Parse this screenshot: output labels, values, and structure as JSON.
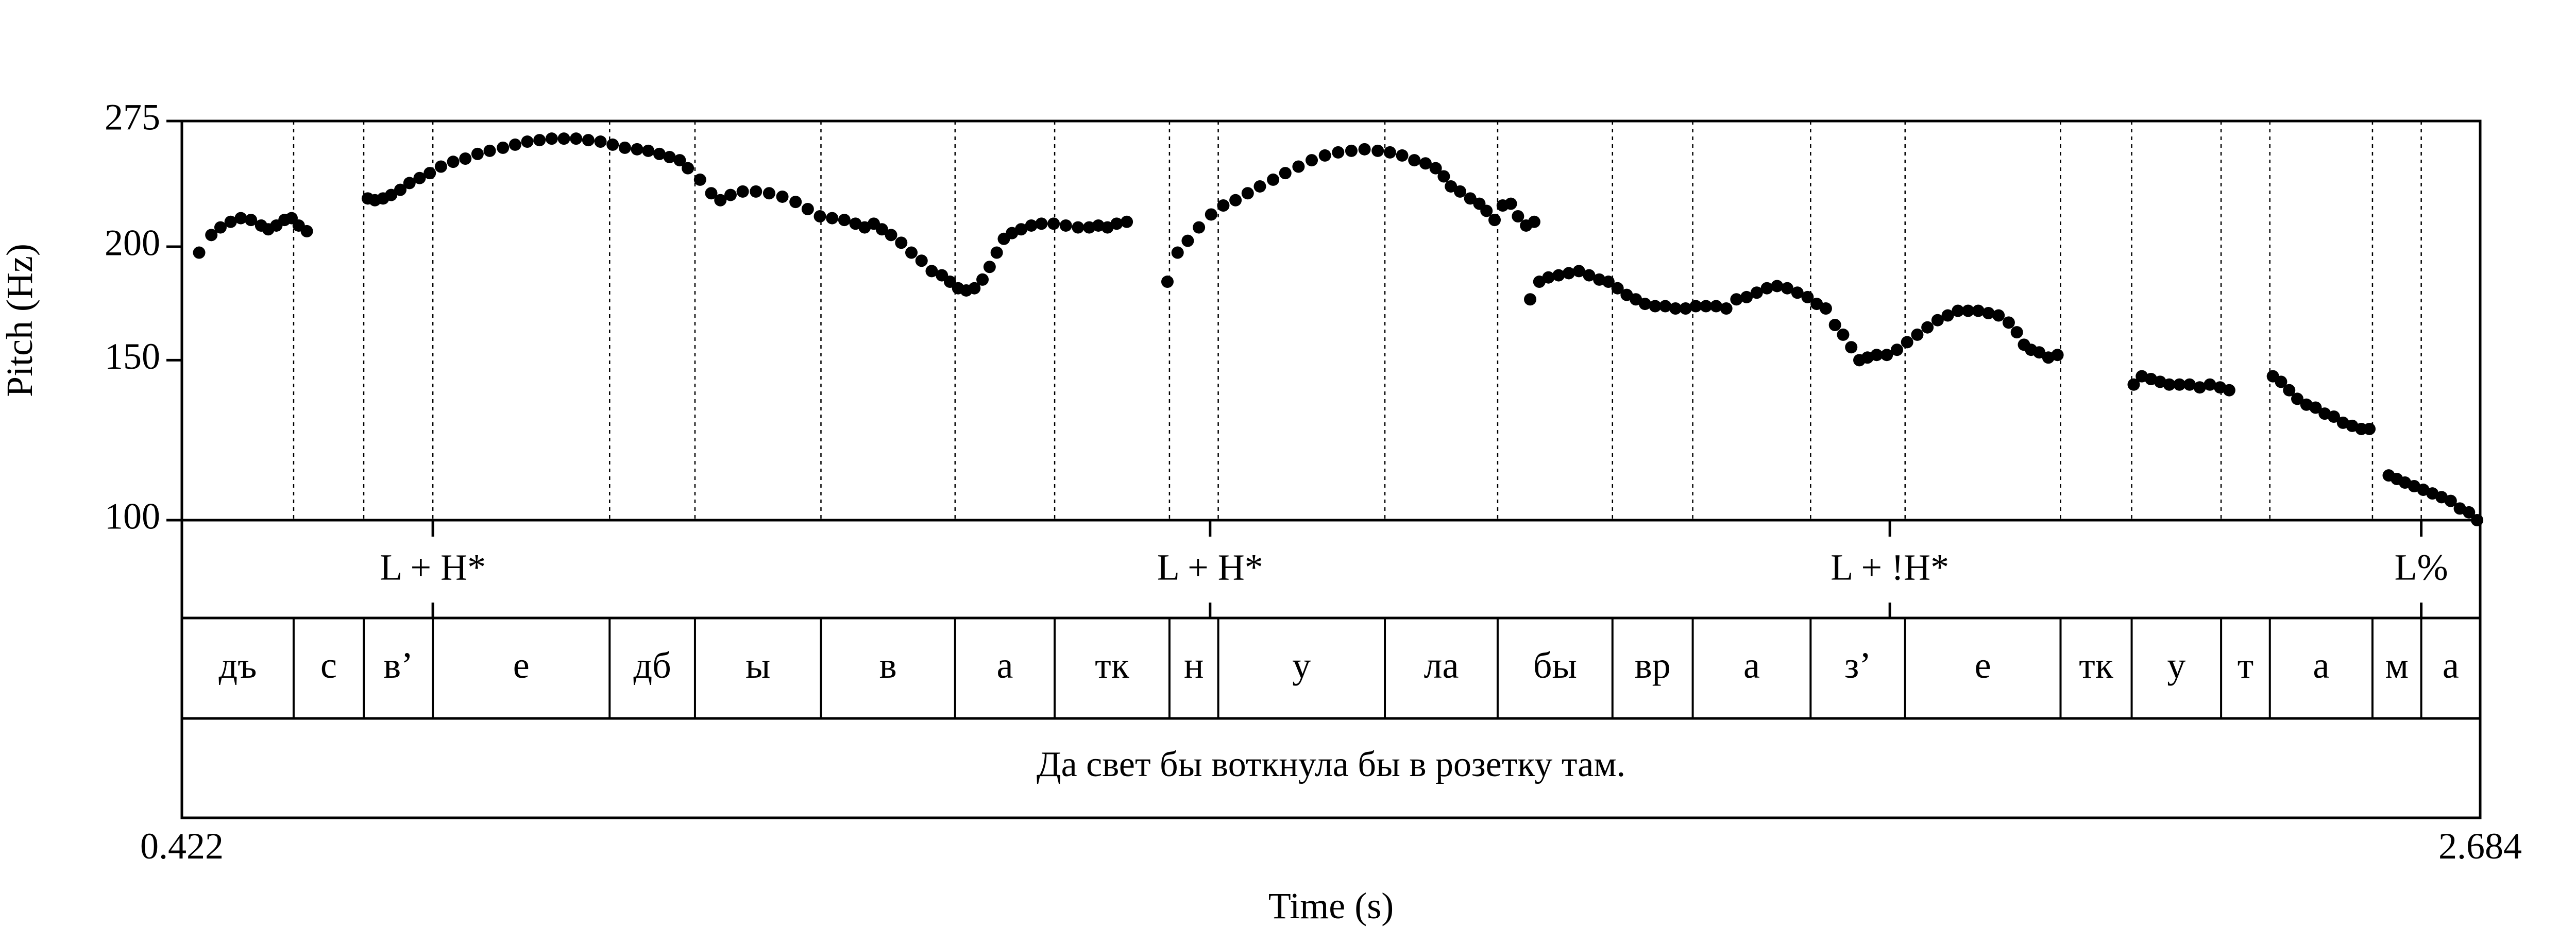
{
  "chart_data": {
    "type": "scatter",
    "xlabel": "Time (s)",
    "ylabel": "Pitch (Hz)",
    "xlim": [
      0.422,
      2.684
    ],
    "ylim": [
      100,
      275
    ],
    "y_scale": "log",
    "x_tick_labels": [
      "0.422",
      "2.684"
    ],
    "y_ticks": [
      100,
      150,
      200,
      275
    ],
    "y_tick_labels": [
      "100",
      "150",
      "200",
      "275"
    ],
    "grid": false,
    "marker_color": "#000000",
    "tones": [
      {
        "label": "L + H*",
        "time": 0.669
      },
      {
        "label": "L + H*",
        "time": 1.434
      },
      {
        "label": "L + !H*",
        "time": 2.103
      },
      {
        "label": "L%",
        "time": 2.626
      }
    ],
    "segments": [
      {
        "label": "дъ",
        "start": 0.422,
        "end": 0.532
      },
      {
        "label": "с",
        "start": 0.532,
        "end": 0.601
      },
      {
        "label": "в’",
        "start": 0.601,
        "end": 0.669
      },
      {
        "label": "е",
        "start": 0.669,
        "end": 0.843
      },
      {
        "label": "дб",
        "start": 0.843,
        "end": 0.927
      },
      {
        "label": "ы",
        "start": 0.927,
        "end": 1.051
      },
      {
        "label": "в",
        "start": 1.051,
        "end": 1.183
      },
      {
        "label": "а",
        "start": 1.183,
        "end": 1.281
      },
      {
        "label": "тк",
        "start": 1.281,
        "end": 1.394
      },
      {
        "label": "н",
        "start": 1.394,
        "end": 1.442
      },
      {
        "label": "у",
        "start": 1.442,
        "end": 1.606
      },
      {
        "label": "ла",
        "start": 1.606,
        "end": 1.717
      },
      {
        "label": "бы",
        "start": 1.717,
        "end": 1.83
      },
      {
        "label": "вр",
        "start": 1.83,
        "end": 1.909
      },
      {
        "label": "а",
        "start": 1.909,
        "end": 2.025
      },
      {
        "label": "з’",
        "start": 2.025,
        "end": 2.118
      },
      {
        "label": "е",
        "start": 2.118,
        "end": 2.271
      },
      {
        "label": "тк",
        "start": 2.271,
        "end": 2.341
      },
      {
        "label": "у",
        "start": 2.341,
        "end": 2.429
      },
      {
        "label": "т",
        "start": 2.429,
        "end": 2.477
      },
      {
        "label": "а",
        "start": 2.477,
        "end": 2.578
      },
      {
        "label": "м",
        "start": 2.578,
        "end": 2.626
      },
      {
        "label": "а",
        "start": 2.626,
        "end": 2.684
      }
    ],
    "sentence": "Да свет бы воткнула бы в розетку там.",
    "pitch_track": [
      [
        [
          0.439,
          197
        ],
        [
          0.451,
          206
        ],
        [
          0.46,
          210
        ],
        [
          0.47,
          213
        ],
        [
          0.48,
          215
        ],
        [
          0.49,
          214
        ],
        [
          0.5,
          211
        ],
        [
          0.507,
          209
        ],
        [
          0.515,
          211
        ],
        [
          0.523,
          214
        ],
        [
          0.53,
          215
        ],
        [
          0.537,
          211
        ],
        [
          0.545,
          208
        ]
      ],
      [
        [
          0.605,
          226
        ],
        [
          0.612,
          225
        ],
        [
          0.62,
          226
        ],
        [
          0.628,
          228
        ],
        [
          0.637,
          231
        ],
        [
          0.646,
          235
        ],
        [
          0.656,
          238
        ],
        [
          0.666,
          241
        ],
        [
          0.677,
          245
        ],
        [
          0.689,
          248
        ],
        [
          0.701,
          250
        ],
        [
          0.713,
          253
        ],
        [
          0.725,
          255
        ],
        [
          0.738,
          257
        ],
        [
          0.75,
          259
        ],
        [
          0.762,
          261
        ],
        [
          0.774,
          262
        ],
        [
          0.786,
          263
        ],
        [
          0.798,
          263
        ],
        [
          0.81,
          263
        ],
        [
          0.822,
          262
        ],
        [
          0.834,
          261
        ],
        [
          0.846,
          259
        ],
        [
          0.858,
          257
        ],
        [
          0.87,
          256
        ],
        [
          0.881,
          255
        ],
        [
          0.892,
          253
        ],
        [
          0.902,
          251
        ],
        [
          0.912,
          249
        ],
        [
          0.92,
          244
        ]
      ],
      [
        [
          0.932,
          237
        ],
        [
          0.943,
          229
        ],
        [
          0.952,
          225
        ],
        [
          0.962,
          228
        ],
        [
          0.974,
          230
        ],
        [
          0.987,
          230
        ],
        [
          1.0,
          229
        ],
        [
          1.013,
          227
        ],
        [
          1.026,
          224
        ],
        [
          1.038,
          220
        ],
        [
          1.05,
          216
        ],
        [
          1.062,
          215
        ],
        [
          1.074,
          214
        ],
        [
          1.085,
          212
        ],
        [
          1.094,
          210
        ],
        [
          1.103,
          212
        ],
        [
          1.111,
          209
        ],
        [
          1.12,
          206
        ],
        [
          1.13,
          202
        ],
        [
          1.14,
          197
        ],
        [
          1.15,
          193
        ],
        [
          1.16,
          188
        ],
        [
          1.17,
          186
        ],
        [
          1.178,
          183
        ],
        [
          1.186,
          180
        ],
        [
          1.194,
          179
        ],
        [
          1.202,
          180
        ],
        [
          1.21,
          184
        ],
        [
          1.217,
          190
        ],
        [
          1.224,
          197
        ],
        [
          1.231,
          204
        ],
        [
          1.239,
          207
        ],
        [
          1.248,
          209
        ],
        [
          1.258,
          211
        ],
        [
          1.268,
          212
        ],
        [
          1.28,
          212
        ],
        [
          1.292,
          211
        ],
        [
          1.304,
          210
        ],
        [
          1.315,
          210
        ],
        [
          1.324,
          211
        ],
        [
          1.333,
          210
        ],
        [
          1.342,
          212
        ],
        [
          1.352,
          213
        ]
      ],
      [
        [
          1.392,
          183
        ],
        [
          1.402,
          197
        ],
        [
          1.412,
          203
        ],
        [
          1.423,
          210
        ],
        [
          1.435,
          217
        ],
        [
          1.447,
          222
        ],
        [
          1.459,
          225
        ],
        [
          1.471,
          229
        ],
        [
          1.483,
          233
        ],
        [
          1.496,
          237
        ],
        [
          1.508,
          241
        ],
        [
          1.521,
          245
        ],
        [
          1.534,
          249
        ],
        [
          1.547,
          252
        ],
        [
          1.56,
          254
        ],
        [
          1.573,
          255
        ],
        [
          1.586,
          256
        ],
        [
          1.599,
          255
        ],
        [
          1.611,
          254
        ],
        [
          1.623,
          252
        ],
        [
          1.635,
          249
        ],
        [
          1.646,
          247
        ],
        [
          1.656,
          244
        ],
        [
          1.664,
          239
        ],
        [
          1.671,
          233
        ],
        [
          1.68,
          230
        ],
        [
          1.69,
          226
        ],
        [
          1.699,
          223
        ],
        [
          1.706,
          219
        ],
        [
          1.714,
          214
        ],
        [
          1.722,
          222
        ],
        [
          1.73,
          223
        ],
        [
          1.737,
          216
        ],
        [
          1.745,
          211
        ],
        [
          1.753,
          213
        ]
      ],
      [
        [
          1.749,
          175
        ],
        [
          1.758,
          183
        ],
        [
          1.767,
          185
        ],
        [
          1.777,
          186
        ],
        [
          1.787,
          187
        ],
        [
          1.797,
          188
        ],
        [
          1.807,
          186
        ],
        [
          1.817,
          184
        ],
        [
          1.826,
          183
        ],
        [
          1.835,
          180
        ],
        [
          1.844,
          177
        ],
        [
          1.853,
          175
        ],
        [
          1.862,
          173
        ],
        [
          1.872,
          172
        ],
        [
          1.882,
          172
        ],
        [
          1.892,
          171
        ],
        [
          1.902,
          171
        ],
        [
          1.912,
          172
        ],
        [
          1.922,
          172
        ],
        [
          1.932,
          172
        ],
        [
          1.942,
          171
        ],
        [
          1.952,
          175
        ],
        [
          1.962,
          176
        ],
        [
          1.972,
          178
        ],
        [
          1.982,
          180
        ],
        [
          1.992,
          181
        ],
        [
          2.002,
          180
        ],
        [
          2.012,
          178
        ],
        [
          2.022,
          176
        ],
        [
          2.031,
          173
        ],
        [
          2.04,
          171
        ],
        [
          2.049,
          164
        ],
        [
          2.057,
          160
        ],
        [
          2.065,
          155
        ],
        [
          2.073,
          150
        ],
        [
          2.081,
          151
        ],
        [
          2.09,
          152
        ],
        [
          2.1,
          152
        ],
        [
          2.11,
          154
        ],
        [
          2.12,
          157
        ],
        [
          2.13,
          160
        ],
        [
          2.14,
          163
        ],
        [
          2.15,
          166
        ],
        [
          2.16,
          168
        ],
        [
          2.17,
          170
        ],
        [
          2.18,
          170
        ],
        [
          2.19,
          170
        ],
        [
          2.2,
          169
        ],
        [
          2.21,
          168
        ],
        [
          2.22,
          165
        ],
        [
          2.228,
          161
        ],
        [
          2.235,
          156
        ],
        [
          2.242,
          154
        ],
        [
          2.25,
          153
        ],
        [
          2.259,
          151
        ],
        [
          2.268,
          152
        ]
      ],
      [
        [
          2.343,
          141
        ],
        [
          2.351,
          144
        ],
        [
          2.36,
          143
        ],
        [
          2.369,
          142
        ],
        [
          2.378,
          141
        ],
        [
          2.388,
          141
        ],
        [
          2.398,
          141
        ],
        [
          2.408,
          140
        ],
        [
          2.418,
          141
        ],
        [
          2.428,
          140
        ],
        [
          2.437,
          139
        ]
      ],
      [
        [
          2.48,
          144
        ],
        [
          2.488,
          142
        ],
        [
          2.496,
          139
        ],
        [
          2.504,
          136
        ],
        [
          2.513,
          134
        ],
        [
          2.522,
          133
        ],
        [
          2.531,
          131
        ],
        [
          2.54,
          130
        ],
        [
          2.549,
          128
        ],
        [
          2.558,
          127
        ],
        [
          2.567,
          126
        ],
        [
          2.575,
          126
        ]
      ],
      [
        [
          2.594,
          112
        ],
        [
          2.602,
          111
        ],
        [
          2.61,
          110
        ],
        [
          2.619,
          109
        ],
        [
          2.628,
          108
        ],
        [
          2.637,
          107
        ],
        [
          2.646,
          106
        ],
        [
          2.655,
          105
        ],
        [
          2.664,
          103
        ],
        [
          2.673,
          102
        ],
        [
          2.681,
          100
        ]
      ]
    ]
  }
}
